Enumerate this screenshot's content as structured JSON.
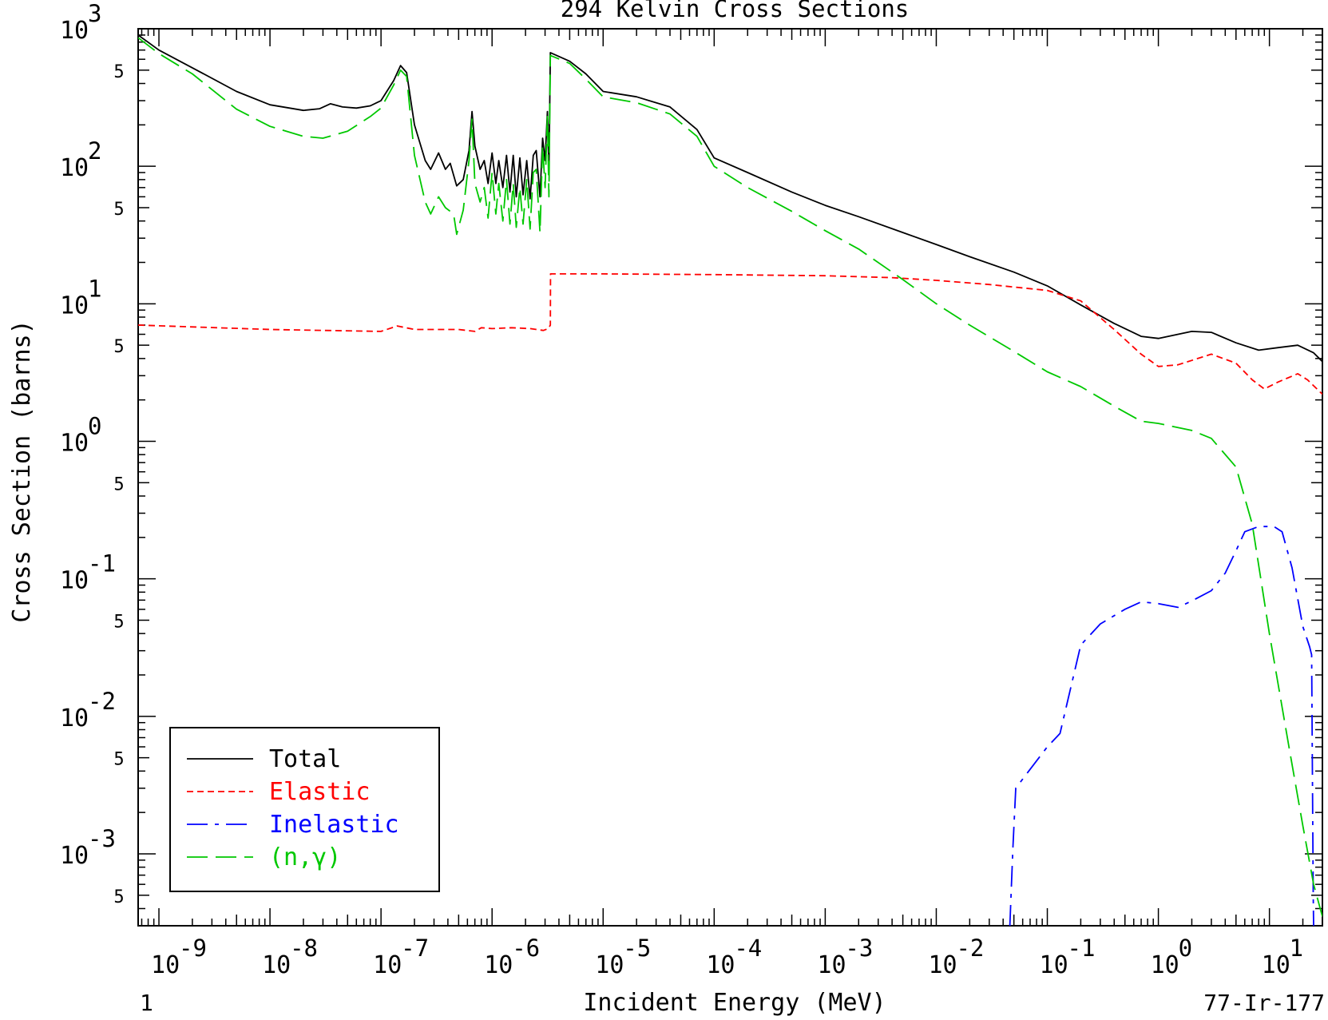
{
  "chart_data": {
    "type": "line",
    "title": "294 Kelvin Cross Sections",
    "xlabel": "Incident Energy (MeV)",
    "ylabel": "Cross Section (barns)",
    "x_scale": "log",
    "y_scale": "log",
    "xlim": [
      6.5e-10,
      30
    ],
    "ylim": [
      0.0003,
      1000
    ],
    "x_ticks": [
      {
        "base": "10",
        "exp": "-9",
        "value": 1e-09
      },
      {
        "base": "10",
        "exp": "-8",
        "value": 1e-08
      },
      {
        "base": "10",
        "exp": "-7",
        "value": 1e-07
      },
      {
        "base": "10",
        "exp": "-6",
        "value": 1e-06
      },
      {
        "base": "10",
        "exp": "-5",
        "value": 1e-05
      },
      {
        "base": "10",
        "exp": "-4",
        "value": 0.0001
      },
      {
        "base": "10",
        "exp": "-3",
        "value": 0.001
      },
      {
        "base": "10",
        "exp": "-2",
        "value": 0.01
      },
      {
        "base": "10",
        "exp": "-1",
        "value": 0.1
      },
      {
        "base": "10",
        "exp": "0",
        "value": 1
      },
      {
        "base": "10",
        "exp": "1",
        "value": 10
      }
    ],
    "y_ticks": [
      {
        "base": "10",
        "exp": "3",
        "value": 1000
      },
      {
        "base": "10",
        "exp": "2",
        "value": 100
      },
      {
        "base": "10",
        "exp": "1",
        "value": 10
      },
      {
        "base": "10",
        "exp": "0",
        "value": 1
      },
      {
        "base": "10",
        "exp": "-1",
        "value": 0.1
      },
      {
        "base": "10",
        "exp": "-2",
        "value": 0.01
      },
      {
        "base": "10",
        "exp": "-3",
        "value": 0.001
      }
    ],
    "y_minor_label": "5",
    "corner_left": "1",
    "corner_right": "77-Ir-177",
    "legend_position": "bottom-left",
    "series": [
      {
        "name": "Total",
        "color": "#000000",
        "dash": "solid",
        "points": [
          [
            6.5e-10,
            900
          ],
          [
            1e-09,
            700
          ],
          [
            2e-09,
            520
          ],
          [
            5e-09,
            350
          ],
          [
            1e-08,
            280
          ],
          [
            2e-08,
            255
          ],
          [
            2.8e-08,
            262
          ],
          [
            3.5e-08,
            285
          ],
          [
            4.5e-08,
            270
          ],
          [
            6e-08,
            265
          ],
          [
            8e-08,
            275
          ],
          [
            1e-07,
            300
          ],
          [
            1.3e-07,
            420
          ],
          [
            1.5e-07,
            540
          ],
          [
            1.7e-07,
            480
          ],
          [
            2e-07,
            200
          ],
          [
            2.5e-07,
            110
          ],
          [
            2.8e-07,
            95
          ],
          [
            3.3e-07,
            125
          ],
          [
            3.8e-07,
            95
          ],
          [
            4.2e-07,
            105
          ],
          [
            4.8e-07,
            72
          ],
          [
            5.5e-07,
            80
          ],
          [
            6.2e-07,
            130
          ],
          [
            6.6e-07,
            250
          ],
          [
            7e-07,
            140
          ],
          [
            7.8e-07,
            95
          ],
          [
            8.5e-07,
            110
          ],
          [
            9.2e-07,
            75
          ],
          [
            1e-06,
            125
          ],
          [
            1.08e-06,
            75
          ],
          [
            1.15e-06,
            110
          ],
          [
            1.25e-06,
            70
          ],
          [
            1.35e-06,
            120
          ],
          [
            1.45e-06,
            65
          ],
          [
            1.55e-06,
            120
          ],
          [
            1.65e-06,
            60
          ],
          [
            1.78e-06,
            115
          ],
          [
            1.9e-06,
            62
          ],
          [
            2.05e-06,
            110
          ],
          [
            2.2e-06,
            58
          ],
          [
            2.35e-06,
            120
          ],
          [
            2.5e-06,
            130
          ],
          [
            2.7e-06,
            60
          ],
          [
            2.85e-06,
            160
          ],
          [
            3e-06,
            110
          ],
          [
            3.15e-06,
            250
          ],
          [
            3.25e-06,
            90
          ],
          [
            3.35e-06,
            670
          ],
          [
            5e-06,
            580
          ],
          [
            7e-06,
            470
          ],
          [
            1e-05,
            350
          ],
          [
            2e-05,
            320
          ],
          [
            4e-05,
            270
          ],
          [
            7e-05,
            185
          ],
          [
            0.0001,
            115
          ],
          [
            0.0002,
            90
          ],
          [
            0.0005,
            65
          ],
          [
            0.001,
            52
          ],
          [
            0.002,
            43
          ],
          [
            0.005,
            33
          ],
          [
            0.01,
            27
          ],
          [
            0.02,
            22
          ],
          [
            0.05,
            17
          ],
          [
            0.1,
            13.5
          ],
          [
            0.2,
            9.8
          ],
          [
            0.4,
            7.2
          ],
          [
            0.7,
            5.8
          ],
          [
            1,
            5.6
          ],
          [
            2,
            6.3
          ],
          [
            3,
            6.2
          ],
          [
            5,
            5.2
          ],
          [
            8,
            4.6
          ],
          [
            12,
            4.8
          ],
          [
            18,
            5.0
          ],
          [
            25,
            4.4
          ],
          [
            30,
            3.8
          ]
        ]
      },
      {
        "name": "Elastic",
        "color": "#ff0000",
        "dash": "short",
        "points": [
          [
            6.5e-10,
            7.0
          ],
          [
            1e-08,
            6.5
          ],
          [
            1e-07,
            6.3
          ],
          [
            1.4e-07,
            6.9
          ],
          [
            2e-07,
            6.5
          ],
          [
            5e-07,
            6.5
          ],
          [
            7e-07,
            6.3
          ],
          [
            8e-07,
            6.7
          ],
          [
            1e-06,
            6.6
          ],
          [
            1.5e-06,
            6.7
          ],
          [
            2.2e-06,
            6.6
          ],
          [
            2.9e-06,
            6.4
          ],
          [
            3.2e-06,
            6.6
          ],
          [
            3.35e-06,
            7.0
          ],
          [
            3.36e-06,
            16.5
          ],
          [
            1e-05,
            16.5
          ],
          [
            0.0001,
            16.3
          ],
          [
            0.001,
            16.0
          ],
          [
            0.004,
            15.5
          ],
          [
            0.01,
            14.8
          ],
          [
            0.03,
            13.8
          ],
          [
            0.1,
            12.5
          ],
          [
            0.2,
            10.5
          ],
          [
            0.4,
            6.5
          ],
          [
            0.7,
            4.3
          ],
          [
            1,
            3.5
          ],
          [
            1.5,
            3.6
          ],
          [
            3,
            4.3
          ],
          [
            5,
            3.7
          ],
          [
            7,
            2.8
          ],
          [
            9,
            2.4
          ],
          [
            12,
            2.7
          ],
          [
            18,
            3.1
          ],
          [
            22,
            2.8
          ],
          [
            30,
            2.2
          ]
        ]
      },
      {
        "name": "Inelastic",
        "color": "#0000ff",
        "dash": "dashdot",
        "points": [
          [
            0.046,
            0.0003
          ],
          [
            0.049,
            0.0011
          ],
          [
            0.052,
            0.003
          ],
          [
            0.06,
            0.0035
          ],
          [
            0.1,
            0.006
          ],
          [
            0.13,
            0.0075
          ],
          [
            0.2,
            0.033
          ],
          [
            0.3,
            0.047
          ],
          [
            0.5,
            0.06
          ],
          [
            0.7,
            0.068
          ],
          [
            1,
            0.066
          ],
          [
            1.5,
            0.062
          ],
          [
            2,
            0.069
          ],
          [
            3,
            0.082
          ],
          [
            4,
            0.11
          ],
          [
            5,
            0.16
          ],
          [
            6,
            0.22
          ],
          [
            8,
            0.24
          ],
          [
            11,
            0.24
          ],
          [
            13,
            0.22
          ],
          [
            16,
            0.12
          ],
          [
            20,
            0.045
          ],
          [
            23,
            0.032
          ],
          [
            24,
            0.028
          ],
          [
            24.8,
            0.0005
          ],
          [
            25,
            0.0003
          ]
        ]
      },
      {
        "name": "(n,γ)",
        "color": "#00c800",
        "dash": "long",
        "points": [
          [
            6.5e-10,
            860
          ],
          [
            1e-09,
            660
          ],
          [
            2e-09,
            470
          ],
          [
            5e-09,
            260
          ],
          [
            1e-08,
            195
          ],
          [
            2e-08,
            165
          ],
          [
            3e-08,
            160
          ],
          [
            5e-08,
            180
          ],
          [
            8e-08,
            230
          ],
          [
            1e-07,
            265
          ],
          [
            1.3e-07,
            390
          ],
          [
            1.5e-07,
            500
          ],
          [
            1.7e-07,
            450
          ],
          [
            2e-07,
            120
          ],
          [
            2.5e-07,
            55
          ],
          [
            2.8e-07,
            45
          ],
          [
            3.3e-07,
            60
          ],
          [
            3.8e-07,
            50
          ],
          [
            4.5e-07,
            45
          ],
          [
            4.8e-07,
            32
          ],
          [
            5.5e-07,
            48
          ],
          [
            6.2e-07,
            110
          ],
          [
            6.6e-07,
            220
          ],
          [
            7e-07,
            75
          ],
          [
            7.8e-07,
            55
          ],
          [
            8.5e-07,
            70
          ],
          [
            9.2e-07,
            42
          ],
          [
            1e-06,
            90
          ],
          [
            1.08e-06,
            45
          ],
          [
            1.15e-06,
            75
          ],
          [
            1.25e-06,
            40
          ],
          [
            1.35e-06,
            80
          ],
          [
            1.45e-06,
            38
          ],
          [
            1.55e-06,
            75
          ],
          [
            1.65e-06,
            36
          ],
          [
            1.78e-06,
            70
          ],
          [
            1.9e-06,
            38
          ],
          [
            2.05e-06,
            80
          ],
          [
            2.2e-06,
            35
          ],
          [
            2.35e-06,
            90
          ],
          [
            2.5e-06,
            95
          ],
          [
            2.7e-06,
            33
          ],
          [
            2.85e-06,
            140
          ],
          [
            3e-06,
            70
          ],
          [
            3.15e-06,
            230
          ],
          [
            3.25e-06,
            60
          ],
          [
            3.35e-06,
            640
          ],
          [
            5e-06,
            560
          ],
          [
            7e-06,
            430
          ],
          [
            1e-05,
            320
          ],
          [
            2e-05,
            290
          ],
          [
            4e-05,
            240
          ],
          [
            7e-05,
            165
          ],
          [
            0.0001,
            100
          ],
          [
            0.0002,
            70
          ],
          [
            0.0005,
            47
          ],
          [
            0.001,
            34
          ],
          [
            0.002,
            25
          ],
          [
            0.005,
            15
          ],
          [
            0.01,
            10
          ],
          [
            0.02,
            7
          ],
          [
            0.05,
            4.5
          ],
          [
            0.1,
            3.2
          ],
          [
            0.2,
            2.5
          ],
          [
            0.4,
            1.8
          ],
          [
            0.7,
            1.4
          ],
          [
            1,
            1.35
          ],
          [
            2,
            1.2
          ],
          [
            3,
            1.05
          ],
          [
            5,
            0.65
          ],
          [
            7,
            0.25
          ],
          [
            10,
            0.04
          ],
          [
            15,
            0.006
          ],
          [
            20,
            0.0016
          ],
          [
            25,
            0.0006
          ],
          [
            30,
            0.00035
          ]
        ]
      }
    ]
  }
}
